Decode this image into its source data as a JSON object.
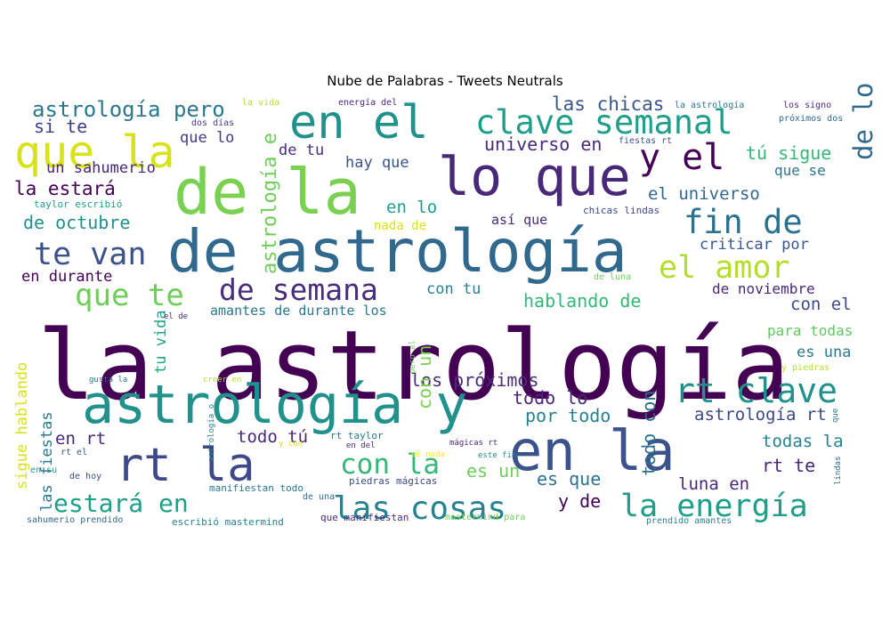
{
  "chart_data": {
    "type": "wordcloud",
    "title": "Nube de Palabras - Tweets Neutrals",
    "palette": "viridis",
    "background": "#ffffff",
    "words": [
      {
        "text": "la astrología",
        "weight": 100,
        "color": "#440154"
      },
      {
        "text": "de astrología",
        "weight": 58,
        "color": "#31688e"
      },
      {
        "text": "de la",
        "weight": 60,
        "color": "#7ad151"
      },
      {
        "text": "astrología y",
        "weight": 55,
        "color": "#21918c"
      },
      {
        "text": "en la",
        "weight": 56,
        "color": "#3b528b"
      },
      {
        "text": "lo que",
        "weight": 53,
        "color": "#482878"
      },
      {
        "text": "en el",
        "weight": 48,
        "color": "#21918c"
      },
      {
        "text": "que la",
        "weight": 46,
        "color": "#d8e219"
      },
      {
        "text": "rt la",
        "weight": 47,
        "color": "#3e4989"
      },
      {
        "text": "clave semanal",
        "weight": 38,
        "color": "#1f9e89"
      },
      {
        "text": "las cosas",
        "weight": 35,
        "color": "#26828e"
      },
      {
        "text": "la energía",
        "weight": 35,
        "color": "#1f9e89"
      },
      {
        "text": "y el",
        "weight": 35,
        "color": "#440154"
      },
      {
        "text": "rt clave",
        "weight": 35,
        "color": "#21918c"
      },
      {
        "text": "fin de",
        "weight": 35,
        "color": "#2c728e"
      },
      {
        "text": "de semana",
        "weight": 35,
        "color": "#472d7b"
      },
      {
        "text": "el amor",
        "weight": 35,
        "color": "#b5de2b"
      },
      {
        "text": "que te",
        "weight": 33,
        "color": "#6ece58"
      },
      {
        "text": "te van",
        "weight": 32,
        "color": "#3b528b"
      },
      {
        "text": "estará en",
        "weight": 30,
        "color": "#1f9e89"
      },
      {
        "text": "con la",
        "weight": 30,
        "color": "#35b779"
      },
      {
        "text": "de lo",
        "weight": 30,
        "color": "#31688e"
      },
      {
        "text": "astrología pero",
        "weight": 25,
        "color": "#2a788e"
      },
      {
        "text": "astrología e",
        "weight": 24,
        "color": "#6ece58"
      },
      {
        "text": "las chicas",
        "weight": 20,
        "color": "#39568c"
      },
      {
        "text": "tú sigue",
        "weight": 20,
        "color": "#35b779"
      },
      {
        "text": "universo en",
        "weight": 20,
        "color": "#482878"
      },
      {
        "text": "el universo",
        "weight": 20,
        "color": "#31688e"
      },
      {
        "text": "de octubre",
        "weight": 20,
        "color": "#21918c"
      },
      {
        "text": "la estará",
        "weight": 20,
        "color": "#440154"
      },
      {
        "text": "en lo",
        "weight": 20,
        "color": "#1f9e89"
      },
      {
        "text": "si te",
        "weight": 20,
        "color": "#433e85"
      },
      {
        "text": "criticar por",
        "weight": 18,
        "color": "#39568c"
      },
      {
        "text": "hablando de",
        "weight": 20,
        "color": "#35b779"
      },
      {
        "text": "con el",
        "weight": 20,
        "color": "#3e4989"
      },
      {
        "text": "con tu",
        "weight": 18,
        "color": "#26828e"
      },
      {
        "text": "de noviembre",
        "weight": 17,
        "color": "#482878"
      },
      {
        "text": "amantes de durante los",
        "weight": 17,
        "color": "#2a788e"
      },
      {
        "text": "en durante",
        "weight": 17,
        "color": "#440154"
      },
      {
        "text": "tu vida",
        "weight": 17,
        "color": "#20a386"
      },
      {
        "text": "sigue hablando",
        "weight": 17,
        "color": "#d8e219"
      },
      {
        "text": "las fiestas",
        "weight": 17,
        "color": "#2a788e"
      },
      {
        "text": "los próximos",
        "weight": 20,
        "color": "#472d7b"
      },
      {
        "text": "todo lo",
        "weight": 20,
        "color": "#482878"
      },
      {
        "text": "por todo",
        "weight": 20,
        "color": "#26828e"
      },
      {
        "text": "astrología rt",
        "weight": 20,
        "color": "#3e4989"
      },
      {
        "text": "todas la",
        "weight": 20,
        "color": "#26828e"
      },
      {
        "text": "rt te",
        "weight": 20,
        "color": "#482878"
      },
      {
        "text": "luna en",
        "weight": 20,
        "color": "#482878"
      },
      {
        "text": "y de",
        "weight": 20,
        "color": "#440154"
      },
      {
        "text": "es que",
        "weight": 20,
        "color": "#2c728e"
      },
      {
        "text": "es un",
        "weight": 20,
        "color": "#6ece58"
      },
      {
        "text": "todo con",
        "weight": 20,
        "color": "#2c728e"
      },
      {
        "text": "todo tú",
        "weight": 20,
        "color": "#482878"
      },
      {
        "text": "en rt",
        "weight": 20,
        "color": "#482878"
      },
      {
        "text": "con un",
        "weight": 20,
        "color": "#7ad151"
      },
      {
        "text": "para todas",
        "weight": 17,
        "color": "#5ec962"
      },
      {
        "text": "es una",
        "weight": 17,
        "color": "#2a788e"
      },
      {
        "text": "que se",
        "weight": 17,
        "color": "#2c728e"
      },
      {
        "text": "de tu",
        "weight": 17,
        "color": "#472d7b"
      },
      {
        "text": "hay que",
        "weight": 17,
        "color": "#39568c"
      },
      {
        "text": "que lo",
        "weight": 17,
        "color": "#443983"
      },
      {
        "text": "un sahumerio",
        "weight": 17,
        "color": "#482878"
      },
      {
        "text": "así que",
        "weight": 15,
        "color": "#482878"
      },
      {
        "text": "nada de",
        "weight": 14,
        "color": "#d8e219"
      },
      {
        "text": "chicas lindas",
        "weight": 11,
        "color": "#3e4989"
      },
      {
        "text": "de luna",
        "weight": 10,
        "color": "#6ece58"
      },
      {
        "text": "la vida",
        "weight": 10,
        "color": "#b5de2b"
      },
      {
        "text": "energía del",
        "weight": 10,
        "color": "#482878"
      },
      {
        "text": "dos días",
        "weight": 10,
        "color": "#433e85"
      },
      {
        "text": "la astrología",
        "weight": 10,
        "color": "#2c728e"
      },
      {
        "text": "los signo",
        "weight": 10,
        "color": "#472d7b"
      },
      {
        "text": "próximos dos",
        "weight": 10,
        "color": "#31688e"
      },
      {
        "text": "fiestas rt",
        "weight": 10,
        "color": "#3b528b"
      },
      {
        "text": "taylor escribió",
        "weight": 11,
        "color": "#1f9e89"
      },
      {
        "text": "el de",
        "weight": 9,
        "color": "#472d7b"
      },
      {
        "text": "gusta la",
        "weight": 9,
        "color": "#2c728e"
      },
      {
        "text": "creer en",
        "weight": 9,
        "color": "#b5de2b"
      },
      {
        "text": "pero el",
        "weight": 9,
        "color": "#6ece58"
      },
      {
        "text": "y piedras",
        "weight": 10,
        "color": "#b5de2b"
      },
      {
        "text": "rt el",
        "weight": 10,
        "color": "#39568c"
      },
      {
        "text": "astrología o",
        "weight": 9,
        "color": "#26828e"
      },
      {
        "text": "y con",
        "weight": 9,
        "color": "#d8e219"
      },
      {
        "text": "rt taylor",
        "weight": 11,
        "color": "#2a788e"
      },
      {
        "text": "en del",
        "weight": 9,
        "color": "#472d7b"
      },
      {
        "text": "mágicas rt",
        "weight": 9,
        "color": "#482878"
      },
      {
        "text": "este fin",
        "weight": 9,
        "color": "#21918c"
      },
      {
        "text": "sé nada",
        "weight": 9,
        "color": "#fde725"
      },
      {
        "text": "en su",
        "weight": 10,
        "color": "#1f9e89"
      },
      {
        "text": "de hoy",
        "weight": 10,
        "color": "#3e4989"
      },
      {
        "text": "lindas",
        "weight": 9,
        "color": "#31688e"
      },
      {
        "text": "que",
        "weight": 9,
        "color": "#2c728e"
      },
      {
        "text": "manifiestan todo",
        "weight": 11,
        "color": "#2a788e"
      },
      {
        "text": "piedras mágicas",
        "weight": 11,
        "color": "#3e4989"
      },
      {
        "text": "de una",
        "weight": 10,
        "color": "#31688e"
      },
      {
        "text": "que manifiestan",
        "weight": 11,
        "color": "#482878"
      },
      {
        "text": "mastermind para",
        "weight": 10,
        "color": "#6ece58"
      },
      {
        "text": "sahumerio prendido",
        "weight": 10,
        "color": "#31688e"
      },
      {
        "text": "escribió mastermind",
        "weight": 10,
        "color": "#26828e"
      },
      {
        "text": "prendido amantes",
        "weight": 10,
        "color": "#26828e"
      }
    ]
  }
}
